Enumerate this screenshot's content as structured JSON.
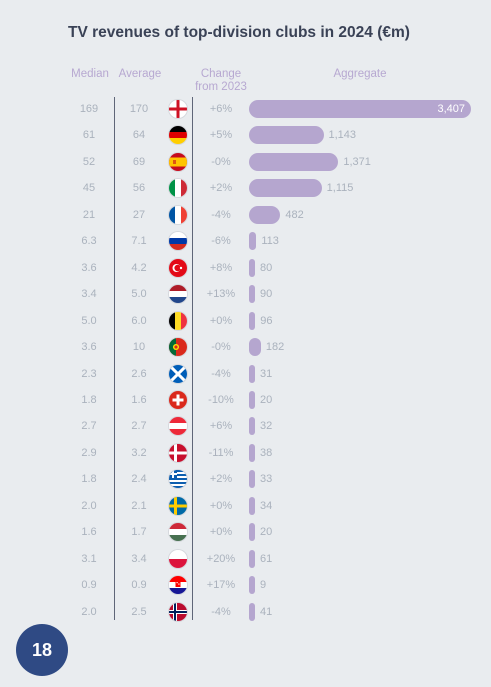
{
  "title": "TV revenues of top-division clubs in 2024 (€m)",
  "headers": {
    "median": "Median",
    "average": "Average",
    "change_line1": "Change",
    "change_line2": "from 2023",
    "aggregate": "Aggregate"
  },
  "page_number": "18",
  "chart_data": {
    "type": "table",
    "title": "TV revenues of top-division clubs in 2024 (€m)",
    "columns": [
      "Median",
      "Average",
      "Change from 2023",
      "Aggregate"
    ],
    "aggregate_bar_color": "#b5a6cf",
    "rows": [
      {
        "flag": "england-flag",
        "median": "169",
        "average": "170",
        "change": "+6%",
        "aggregate": 3407,
        "aggregate_label": "3,407"
      },
      {
        "flag": "germany-flag",
        "median": "61",
        "average": "64",
        "change": "+5%",
        "aggregate": 1143,
        "aggregate_label": "1,143"
      },
      {
        "flag": "spain-flag",
        "median": "52",
        "average": "69",
        "change": "-0%",
        "aggregate": 1371,
        "aggregate_label": "1,371"
      },
      {
        "flag": "italy-flag",
        "median": "45",
        "average": "56",
        "change": "+2%",
        "aggregate": 1115,
        "aggregate_label": "1,115"
      },
      {
        "flag": "france-flag",
        "median": "21",
        "average": "27",
        "change": "-4%",
        "aggregate": 482,
        "aggregate_label": "482"
      },
      {
        "flag": "russia-flag",
        "median": "6.3",
        "average": "7.1",
        "change": "-6%",
        "aggregate": 113,
        "aggregate_label": "113"
      },
      {
        "flag": "turkey-flag",
        "median": "3.6",
        "average": "4.2",
        "change": "+8%",
        "aggregate": 80,
        "aggregate_label": "80"
      },
      {
        "flag": "netherlands-flag",
        "median": "3.4",
        "average": "5.0",
        "change": "+13%",
        "aggregate": 90,
        "aggregate_label": "90"
      },
      {
        "flag": "belgium-flag",
        "median": "5.0",
        "average": "6.0",
        "change": "+0%",
        "aggregate": 96,
        "aggregate_label": "96"
      },
      {
        "flag": "portugal-flag",
        "median": "3.6",
        "average": "10",
        "change": "-0%",
        "aggregate": 182,
        "aggregate_label": "182"
      },
      {
        "flag": "scotland-flag",
        "median": "2.3",
        "average": "2.6",
        "change": "-4%",
        "aggregate": 31,
        "aggregate_label": "31"
      },
      {
        "flag": "switzerland-flag",
        "median": "1.8",
        "average": "1.6",
        "change": "-10%",
        "aggregate": 20,
        "aggregate_label": "20"
      },
      {
        "flag": "austria-flag",
        "median": "2.7",
        "average": "2.7",
        "change": "+6%",
        "aggregate": 32,
        "aggregate_label": "32"
      },
      {
        "flag": "denmark-flag",
        "median": "2.9",
        "average": "3.2",
        "change": "-11%",
        "aggregate": 38,
        "aggregate_label": "38"
      },
      {
        "flag": "greece-flag",
        "median": "1.8",
        "average": "2.4",
        "change": "+2%",
        "aggregate": 33,
        "aggregate_label": "33"
      },
      {
        "flag": "sweden-flag",
        "median": "2.0",
        "average": "2.1",
        "change": "+0%",
        "aggregate": 34,
        "aggregate_label": "34"
      },
      {
        "flag": "hungary-flag",
        "median": "1.6",
        "average": "1.7",
        "change": "+0%",
        "aggregate": 20,
        "aggregate_label": "20"
      },
      {
        "flag": "poland-flag",
        "median": "3.1",
        "average": "3.4",
        "change": "+20%",
        "aggregate": 61,
        "aggregate_label": "61"
      },
      {
        "flag": "croatia-flag",
        "median": "0.9",
        "average": "0.9",
        "change": "+17%",
        "aggregate": 9,
        "aggregate_label": "9"
      },
      {
        "flag": "norway-flag",
        "median": "2.0",
        "average": "2.5",
        "change": "-4%",
        "aggregate": 41,
        "aggregate_label": "41"
      }
    ]
  }
}
